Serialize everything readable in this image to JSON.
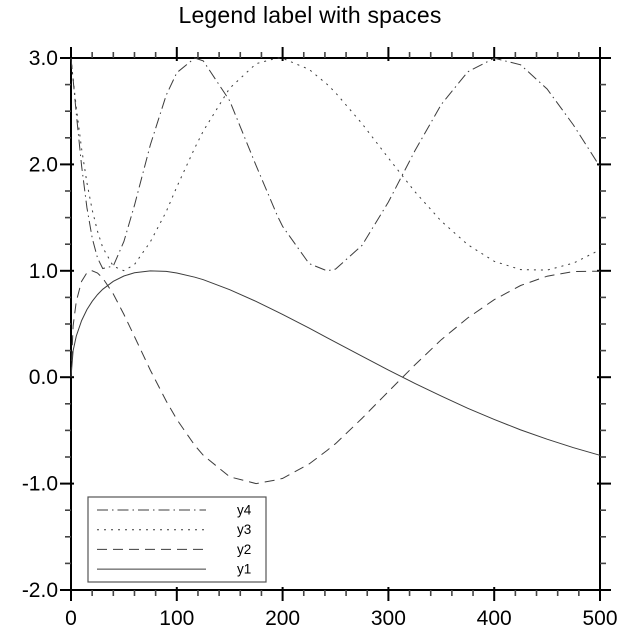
{
  "chart_data": {
    "type": "line",
    "title": "Legend label with spaces",
    "xlabel": "",
    "ylabel": "",
    "xlim": [
      0,
      500
    ],
    "ylim": [
      -2.0,
      3.0
    ],
    "grid": false,
    "x_major_ticks": [
      0,
      100,
      200,
      300,
      400,
      500
    ],
    "x_tick_labels": [
      "0",
      "100",
      "200",
      "300",
      "400",
      "500"
    ],
    "x_minor_step": 20,
    "y_major_ticks": [
      -2.0,
      -1.0,
      0.0,
      1.0,
      2.0,
      3.0
    ],
    "y_tick_labels": [
      "-2.0",
      "-1.0",
      "0.0",
      "1.0",
      "2.0",
      "3.0"
    ],
    "y_minor_step": 0.25,
    "line_color": "#3c3c3c",
    "frame_color": "#000000",
    "x": [
      0,
      2,
      5,
      10,
      15,
      20,
      25,
      30,
      40,
      50,
      60,
      75,
      90,
      100,
      117,
      125,
      150,
      175,
      195,
      200,
      225,
      242,
      250,
      275,
      300,
      325,
      350,
      375,
      400,
      425,
      450,
      475,
      500
    ],
    "series": [
      {
        "name": "y1",
        "style": "solid",
        "values": [
          0,
          0.248,
          0.387,
          0.532,
          0.635,
          0.713,
          0.776,
          0.826,
          0.901,
          0.951,
          0.981,
          0.999,
          0.994,
          0.979,
          0.94,
          0.916,
          0.822,
          0.712,
          0.615,
          0.59,
          0.461,
          0.371,
          0.329,
          0.197,
          0.067,
          -0.058,
          -0.178,
          -0.292,
          -0.397,
          -0.495,
          -0.583,
          -0.663,
          -0.734
        ]
      },
      {
        "name": "y2",
        "style": "dash",
        "values": [
          0,
          0.481,
          0.713,
          0.901,
          0.981,
          1.0,
          0.979,
          0.932,
          0.782,
          0.59,
          0.382,
          0.067,
          -0.224,
          -0.397,
          -0.641,
          -0.734,
          -0.936,
          -1.0,
          -0.963,
          -0.951,
          -0.816,
          -0.689,
          -0.625,
          -0.387,
          -0.134,
          0.116,
          0.352,
          0.557,
          0.728,
          0.862,
          0.949,
          0.993,
          0.996
        ]
      },
      {
        "name": "y3",
        "style": "dot",
        "values": [
          3.0,
          2.804,
          2.535,
          2.147,
          1.829,
          1.572,
          1.372,
          1.219,
          1.043,
          1.001,
          1.059,
          1.272,
          1.555,
          1.789,
          2.155,
          2.314,
          2.716,
          2.946,
          3.0,
          2.997,
          2.893,
          2.754,
          2.674,
          2.383,
          2.06,
          1.743,
          1.466,
          1.245,
          1.089,
          1.011,
          1.007,
          1.072,
          1.197
        ]
      },
      {
        "name": "y4",
        "style": "dash-dot",
        "values": [
          3.0,
          2.8,
          2.476,
          1.986,
          1.595,
          1.308,
          1.121,
          1.022,
          1.045,
          1.275,
          1.617,
          2.182,
          2.65,
          2.862,
          3.0,
          2.973,
          2.598,
          1.989,
          1.519,
          1.417,
          1.068,
          1.0,
          1.016,
          1.239,
          1.647,
          2.128,
          2.564,
          2.87,
          2.998,
          2.936,
          2.709,
          2.369,
          1.977
        ]
      }
    ],
    "legend": {
      "position": "lower-left",
      "entries": [
        {
          "label": "y4",
          "style": "dash-dot"
        },
        {
          "label": "y3",
          "style": "dot"
        },
        {
          "label": "y2",
          "style": "dash"
        },
        {
          "label": "y1",
          "style": "solid"
        }
      ]
    }
  }
}
